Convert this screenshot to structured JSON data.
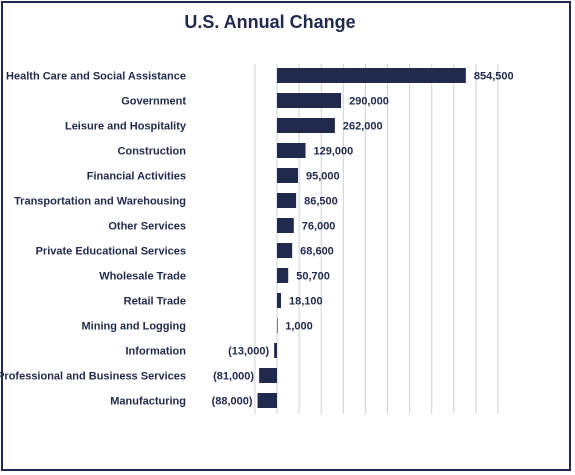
{
  "chart_data": {
    "type": "bar",
    "orientation": "horizontal",
    "title": "U.S. Annual Change",
    "categories": [
      "Health Care and Social Assistance",
      "Government",
      "Leisure and Hospitality",
      "Construction",
      "Financial Activities",
      "Transportation and Warehousing",
      "Other Services",
      "Private Educational Services",
      "Wholesale Trade",
      "Retail Trade",
      "Mining and Logging",
      "Information",
      "Professional and Business Services",
      "Manufacturing"
    ],
    "values": [
      854500,
      290000,
      262000,
      129000,
      95000,
      86500,
      76000,
      68600,
      50700,
      18100,
      1000,
      -13000,
      -81000,
      -88000
    ],
    "value_labels": [
      "854,500",
      "290,000",
      "262,000",
      "129,000",
      "95,000",
      "86,500",
      "76,000",
      "68,600",
      "50,700",
      "18,100",
      "1,000",
      "(13,000)",
      "(81,000)",
      "(88,000)"
    ],
    "xlim": [
      -100000,
      1000000
    ],
    "grid": true,
    "bar_color": "#1f2a4d",
    "grid_color": "#d0d0d0"
  }
}
